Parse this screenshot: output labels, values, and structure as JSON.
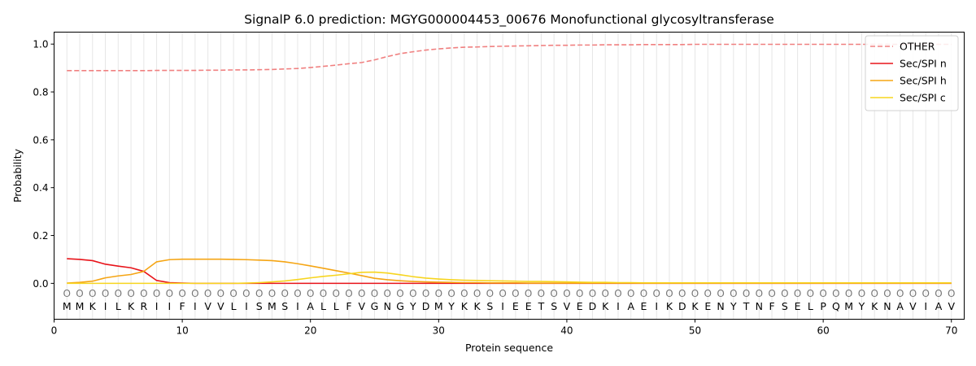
{
  "chart_data": {
    "type": "line",
    "title": "SignalP 6.0 prediction: MGYG000004453_00676 Monofunctional glycosyltransferase",
    "xlabel": "Protein sequence",
    "ylabel": "Probability",
    "xlim": [
      0,
      71
    ],
    "ylim": [
      -0.15,
      1.05
    ],
    "x_ticks": [
      0,
      10,
      20,
      30,
      40,
      50,
      60,
      70
    ],
    "y_ticks": [
      0.0,
      0.2,
      0.4,
      0.6,
      0.8,
      1.0
    ],
    "x_tick_labels": [
      "0",
      "10",
      "20",
      "30",
      "40",
      "50",
      "60",
      "70"
    ],
    "y_tick_labels": [
      "0.0",
      "0.2",
      "0.4",
      "0.6",
      "0.8",
      "1.0"
    ],
    "grid": "vertical lines at each residue position",
    "legend_position": "top-right",
    "sequence": [
      "M",
      "M",
      "K",
      "I",
      "L",
      "K",
      "R",
      "I",
      "I",
      "F",
      "I",
      "V",
      "V",
      "L",
      "I",
      "S",
      "M",
      "S",
      "I",
      "A",
      "L",
      "L",
      "F",
      "V",
      "G",
      "N",
      "G",
      "Y",
      "D",
      "M",
      "Y",
      "K",
      "K",
      "S",
      "I",
      "E",
      "E",
      "T",
      "S",
      "V",
      "E",
      "D",
      "K",
      "I",
      "A",
      "E",
      "I",
      "K",
      "D",
      "K",
      "E",
      "N",
      "Y",
      "T",
      "N",
      "F",
      "S",
      "E",
      "L",
      "P",
      "Q",
      "M",
      "Y",
      "K",
      "N",
      "A",
      "V",
      "I",
      "A",
      "V"
    ],
    "predicted_labels": [
      "O",
      "O",
      "O",
      "O",
      "O",
      "O",
      "O",
      "O",
      "O",
      "O",
      "O",
      "O",
      "O",
      "O",
      "O",
      "O",
      "O",
      "O",
      "O",
      "O",
      "O",
      "O",
      "O",
      "O",
      "O",
      "O",
      "O",
      "O",
      "O",
      "O",
      "O",
      "O",
      "O",
      "O",
      "O",
      "O",
      "O",
      "O",
      "O",
      "O",
      "O",
      "O",
      "O",
      "O",
      "O",
      "O",
      "O",
      "O",
      "O",
      "O",
      "O",
      "O",
      "O",
      "O",
      "O",
      "O",
      "O",
      "O",
      "O",
      "O",
      "O",
      "O",
      "O",
      "O",
      "O",
      "O",
      "O",
      "O",
      "O",
      "O"
    ],
    "series": [
      {
        "name": "OTHER",
        "color": "#f08080",
        "dashed": true,
        "values": [
          0.889,
          0.889,
          0.889,
          0.889,
          0.889,
          0.889,
          0.889,
          0.89,
          0.89,
          0.89,
          0.89,
          0.891,
          0.891,
          0.892,
          0.892,
          0.893,
          0.894,
          0.896,
          0.898,
          0.902,
          0.907,
          0.912,
          0.918,
          0.923,
          0.934,
          0.948,
          0.96,
          0.968,
          0.975,
          0.98,
          0.984,
          0.987,
          0.988,
          0.99,
          0.991,
          0.992,
          0.993,
          0.994,
          0.995,
          0.995,
          0.996,
          0.996,
          0.997,
          0.997,
          0.997,
          0.998,
          0.998,
          0.998,
          0.998,
          0.999,
          0.999,
          0.999,
          0.999,
          0.999,
          0.999,
          0.999,
          0.999,
          0.999,
          0.999,
          0.999,
          0.999,
          0.999,
          0.999,
          0.999,
          0.999,
          0.999,
          0.999,
          0.999,
          0.999,
          0.999
        ]
      },
      {
        "name": "Sec/SPI n",
        "color": "#e8141a",
        "dashed": false,
        "values": [
          0.103,
          0.1,
          0.095,
          0.08,
          0.072,
          0.065,
          0.05,
          0.012,
          0.003,
          0.001,
          0.0,
          0.0,
          0.0,
          0.0,
          0.0,
          0.0,
          0.0,
          0.0,
          0.0,
          0.0,
          0.0,
          0.0,
          0.0,
          0.0,
          0.0,
          0.0,
          0.0,
          0.0,
          0.0,
          0.0,
          0.0,
          0.0,
          0.0,
          0.0,
          0.0,
          0.0,
          0.0,
          0.0,
          0.0,
          0.0,
          0.0,
          0.0,
          0.0,
          0.0,
          0.0,
          0.0,
          0.0,
          0.0,
          0.0,
          0.0,
          0.0,
          0.0,
          0.0,
          0.0,
          0.0,
          0.0,
          0.0,
          0.0,
          0.0,
          0.0,
          0.0,
          0.0,
          0.0,
          0.0,
          0.0,
          0.0,
          0.0,
          0.0,
          0.0,
          0.0
        ]
      },
      {
        "name": "Sec/SPI h",
        "color": "#f5a514",
        "dashed": false,
        "values": [
          0.001,
          0.004,
          0.009,
          0.023,
          0.031,
          0.037,
          0.05,
          0.09,
          0.099,
          0.101,
          0.101,
          0.101,
          0.101,
          0.1,
          0.099,
          0.097,
          0.095,
          0.09,
          0.082,
          0.073,
          0.063,
          0.053,
          0.043,
          0.032,
          0.021,
          0.015,
          0.011,
          0.008,
          0.006,
          0.005,
          0.004,
          0.003,
          0.003,
          0.002,
          0.002,
          0.002,
          0.001,
          0.001,
          0.001,
          0.001,
          0.001,
          0.001,
          0.001,
          0.001,
          0.001,
          0.001,
          0.001,
          0.001,
          0.001,
          0.001,
          0.001,
          0.001,
          0.001,
          0.001,
          0.001,
          0.001,
          0.001,
          0.001,
          0.001,
          0.001,
          0.001,
          0.001,
          0.001,
          0.001,
          0.001,
          0.001,
          0.001,
          0.001,
          0.001,
          0.001
        ]
      },
      {
        "name": "Sec/SPI c",
        "color": "#f7d51f",
        "dashed": false,
        "values": [
          0.0,
          0.0,
          0.0,
          0.0,
          0.0,
          0.0,
          0.0,
          0.0,
          0.0,
          0.0,
          0.0,
          0.0,
          0.0,
          0.0,
          0.001,
          0.003,
          0.006,
          0.01,
          0.016,
          0.023,
          0.029,
          0.034,
          0.04,
          0.046,
          0.047,
          0.043,
          0.036,
          0.028,
          0.022,
          0.018,
          0.015,
          0.013,
          0.012,
          0.011,
          0.01,
          0.009,
          0.008,
          0.008,
          0.007,
          0.006,
          0.005,
          0.004,
          0.004,
          0.003,
          0.003,
          0.002,
          0.002,
          0.002,
          0.002,
          0.002,
          0.002,
          0.002,
          0.002,
          0.002,
          0.002,
          0.002,
          0.002,
          0.002,
          0.002,
          0.002,
          0.002,
          0.002,
          0.002,
          0.002,
          0.002,
          0.002,
          0.002,
          0.002,
          0.002,
          0.002
        ]
      }
    ]
  }
}
